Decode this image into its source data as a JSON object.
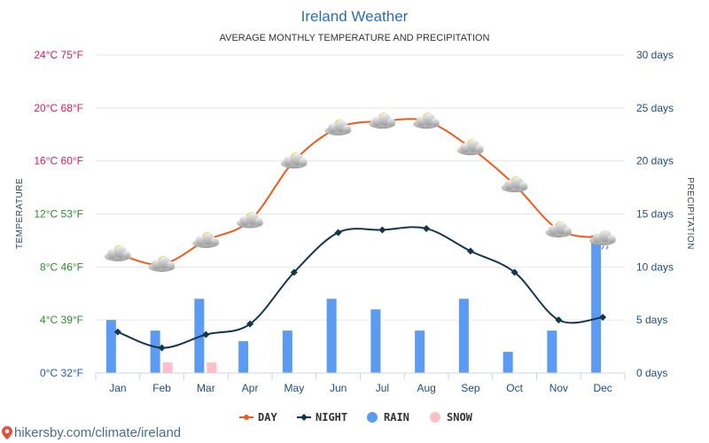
{
  "chart_data": {
    "type": "line",
    "title": "Ireland Weather",
    "subtitle": "AVERAGE MONTHLY TEMPERATURE AND PRECIPITATION",
    "categories": [
      "Jan",
      "Feb",
      "Mar",
      "Apr",
      "May",
      "Jun",
      "Jul",
      "Aug",
      "Sep",
      "Oct",
      "Nov",
      "Dec"
    ],
    "y_left": {
      "title": "TEMPERATURE",
      "range": [
        0,
        24
      ],
      "ticks": [
        "0°C 32°F",
        "4°C 39°F",
        "8°C 46°F",
        "12°C 53°F",
        "16°C 60°F",
        "20°C 68°F",
        "24°C 75°F"
      ],
      "tick_colors": [
        "#1b5fb8",
        "#2e8b2e",
        "#2e8b2e",
        "#2e8b2e",
        "#d81b60",
        "#d81b60",
        "#d81b60"
      ]
    },
    "y_right": {
      "title": "PRECIPITATION",
      "range": [
        0,
        30
      ],
      "ticks": [
        "0 days",
        "5 days",
        "10 days",
        "15 days",
        "20 days",
        "25 days",
        "30 days"
      ],
      "color": "#1f4e79"
    },
    "series": [
      {
        "name": "DAY",
        "type": "line",
        "axis": "left",
        "color": "#ef5a1f",
        "values": [
          9,
          8.2,
          10,
          11.5,
          16,
          18.5,
          19,
          19,
          17,
          14.2,
          10.8,
          10.2
        ]
      },
      {
        "name": "NIGHT",
        "type": "line",
        "axis": "left",
        "color": "#12374d",
        "values": [
          3.1,
          1.9,
          2.9,
          3.7,
          7.6,
          10.6,
          10.8,
          10.9,
          9.2,
          7.6,
          4,
          4.2
        ]
      },
      {
        "name": "RAIN",
        "type": "bar",
        "axis": "right",
        "color": "#5b9bf3",
        "values": [
          5,
          4,
          7,
          3,
          4,
          7,
          6,
          4,
          7,
          2,
          4,
          13
        ]
      },
      {
        "name": "SNOW",
        "type": "bar",
        "axis": "right",
        "color": "#ffbfc9",
        "values": [
          0,
          1,
          1,
          0,
          0,
          0,
          0,
          0,
          0,
          0,
          0,
          0
        ]
      }
    ],
    "weather_icons": [
      "partly-cloudy-icon",
      "partly-cloudy-icon",
      "partly-cloudy-icon",
      "partly-cloudy-icon",
      "partly-cloudy-icon",
      "partly-cloudy-icon",
      "partly-cloudy-icon",
      "partly-cloudy-icon",
      "partly-cloudy-icon",
      "partly-cloudy-icon",
      "partly-cloudy-icon",
      "rain-cloud-icon"
    ]
  },
  "legend": {
    "items": [
      {
        "label": "DAY",
        "color": "#ef5a1f",
        "kind": "line"
      },
      {
        "label": "NIGHT",
        "color": "#12374d",
        "kind": "line"
      },
      {
        "label": "RAIN",
        "color": "#5b9bf3",
        "kind": "dot"
      },
      {
        "label": "SNOW",
        "color": "#ffbfc9",
        "kind": "dot"
      }
    ]
  },
  "watermark": {
    "text": "hikersby.com/climate/ireland",
    "icon": "location-pin-icon"
  }
}
